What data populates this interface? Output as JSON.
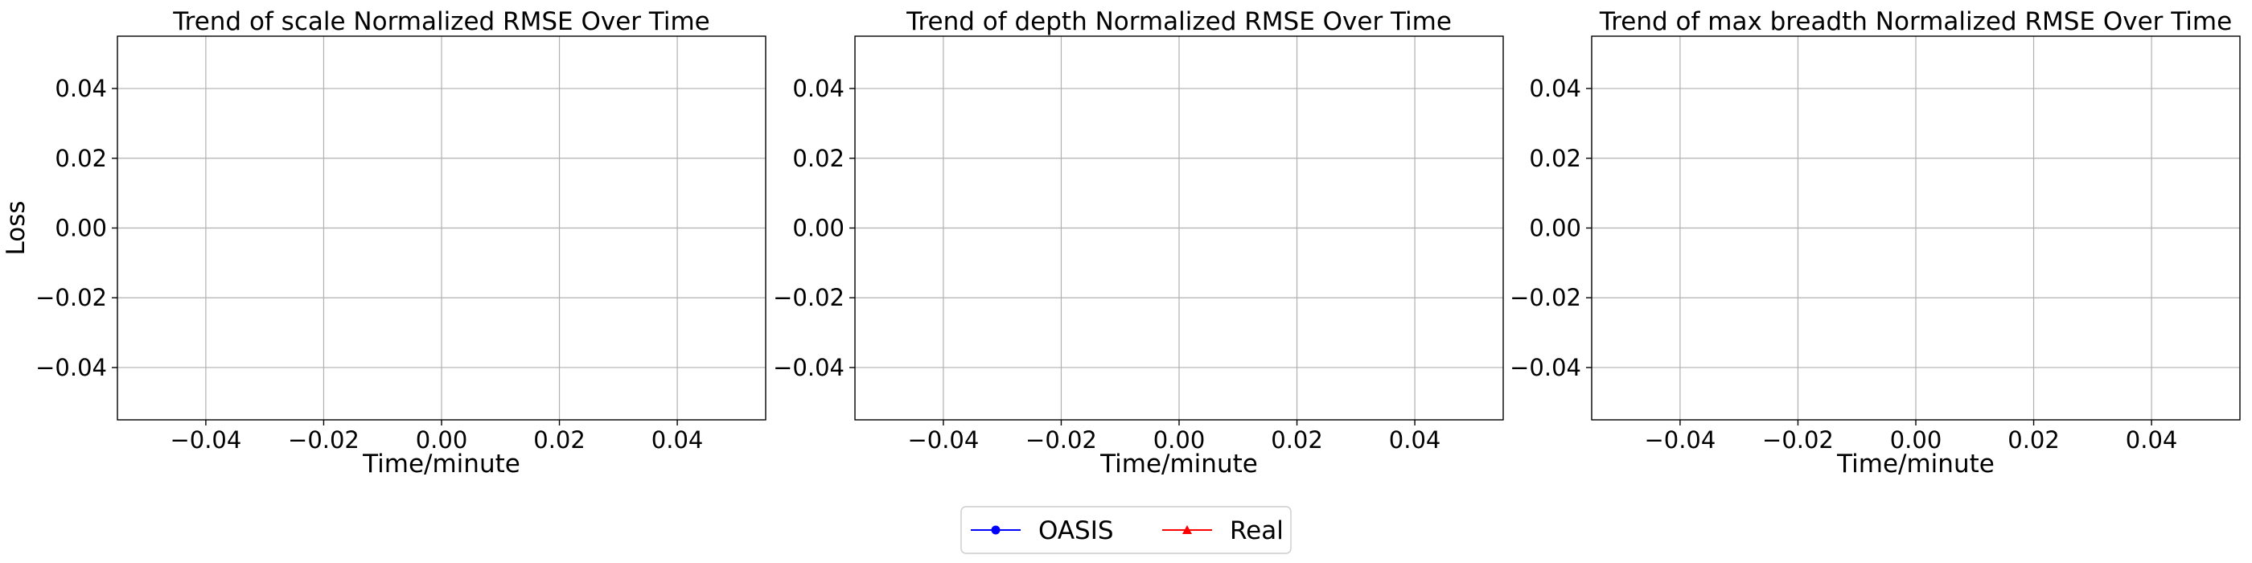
{
  "chart_data": [
    {
      "type": "line",
      "title": "Trend of scale Normalized RMSE Over Time",
      "xlabel": "Time/minute",
      "ylabel": "Loss",
      "xlim": [
        -0.055,
        0.055
      ],
      "ylim": [
        -0.055,
        0.055
      ],
      "xticks": [
        -0.04,
        -0.02,
        0.0,
        0.02,
        0.04
      ],
      "xtick_labels": [
        "−0.04",
        "−0.02",
        "0.00",
        "0.02",
        "0.04"
      ],
      "yticks": [
        0.04,
        0.02,
        0.0,
        -0.02,
        -0.04
      ],
      "ytick_labels": [
        "0.04",
        "0.02",
        "0.00",
        "−0.02",
        "−0.04"
      ],
      "grid": true,
      "series": [
        {
          "name": "OASIS",
          "color": "#0000ff",
          "marker": "circle",
          "x": [],
          "y": []
        },
        {
          "name": "Real",
          "color": "#ff0000",
          "marker": "triangle",
          "x": [],
          "y": []
        }
      ]
    },
    {
      "type": "line",
      "title": "Trend of depth Normalized RMSE Over Time",
      "xlabel": "Time/minute",
      "ylabel": "",
      "xlim": [
        -0.055,
        0.055
      ],
      "ylim": [
        -0.055,
        0.055
      ],
      "xticks": [
        -0.04,
        -0.02,
        0.0,
        0.02,
        0.04
      ],
      "xtick_labels": [
        "−0.04",
        "−0.02",
        "0.00",
        "0.02",
        "0.04"
      ],
      "yticks": [
        0.04,
        0.02,
        0.0,
        -0.02,
        -0.04
      ],
      "ytick_labels": [
        "0.04",
        "0.02",
        "0.00",
        "−0.02",
        "−0.04"
      ],
      "grid": true,
      "series": [
        {
          "name": "OASIS",
          "color": "#0000ff",
          "marker": "circle",
          "x": [],
          "y": []
        },
        {
          "name": "Real",
          "color": "#ff0000",
          "marker": "triangle",
          "x": [],
          "y": []
        }
      ]
    },
    {
      "type": "line",
      "title": "Trend of max breadth Normalized RMSE Over Time",
      "xlabel": "Time/minute",
      "ylabel": "",
      "xlim": [
        -0.055,
        0.055
      ],
      "ylim": [
        -0.055,
        0.055
      ],
      "xticks": [
        -0.04,
        -0.02,
        0.0,
        0.02,
        0.04
      ],
      "xtick_labels": [
        "−0.04",
        "−0.02",
        "0.00",
        "0.02",
        "0.04"
      ],
      "yticks": [
        0.04,
        0.02,
        0.0,
        -0.02,
        -0.04
      ],
      "ytick_labels": [
        "0.04",
        "0.02",
        "0.00",
        "−0.02",
        "−0.04"
      ],
      "grid": true,
      "series": [
        {
          "name": "OASIS",
          "color": "#0000ff",
          "marker": "circle",
          "x": [],
          "y": []
        },
        {
          "name": "Real",
          "color": "#ff0000",
          "marker": "triangle",
          "x": [],
          "y": []
        }
      ]
    }
  ],
  "legend": {
    "placement": "bottom-center",
    "entries": [
      {
        "label": "OASIS",
        "color": "#0000ff",
        "marker": "circle"
      },
      {
        "label": "Real",
        "color": "#ff0000",
        "marker": "triangle"
      }
    ]
  }
}
